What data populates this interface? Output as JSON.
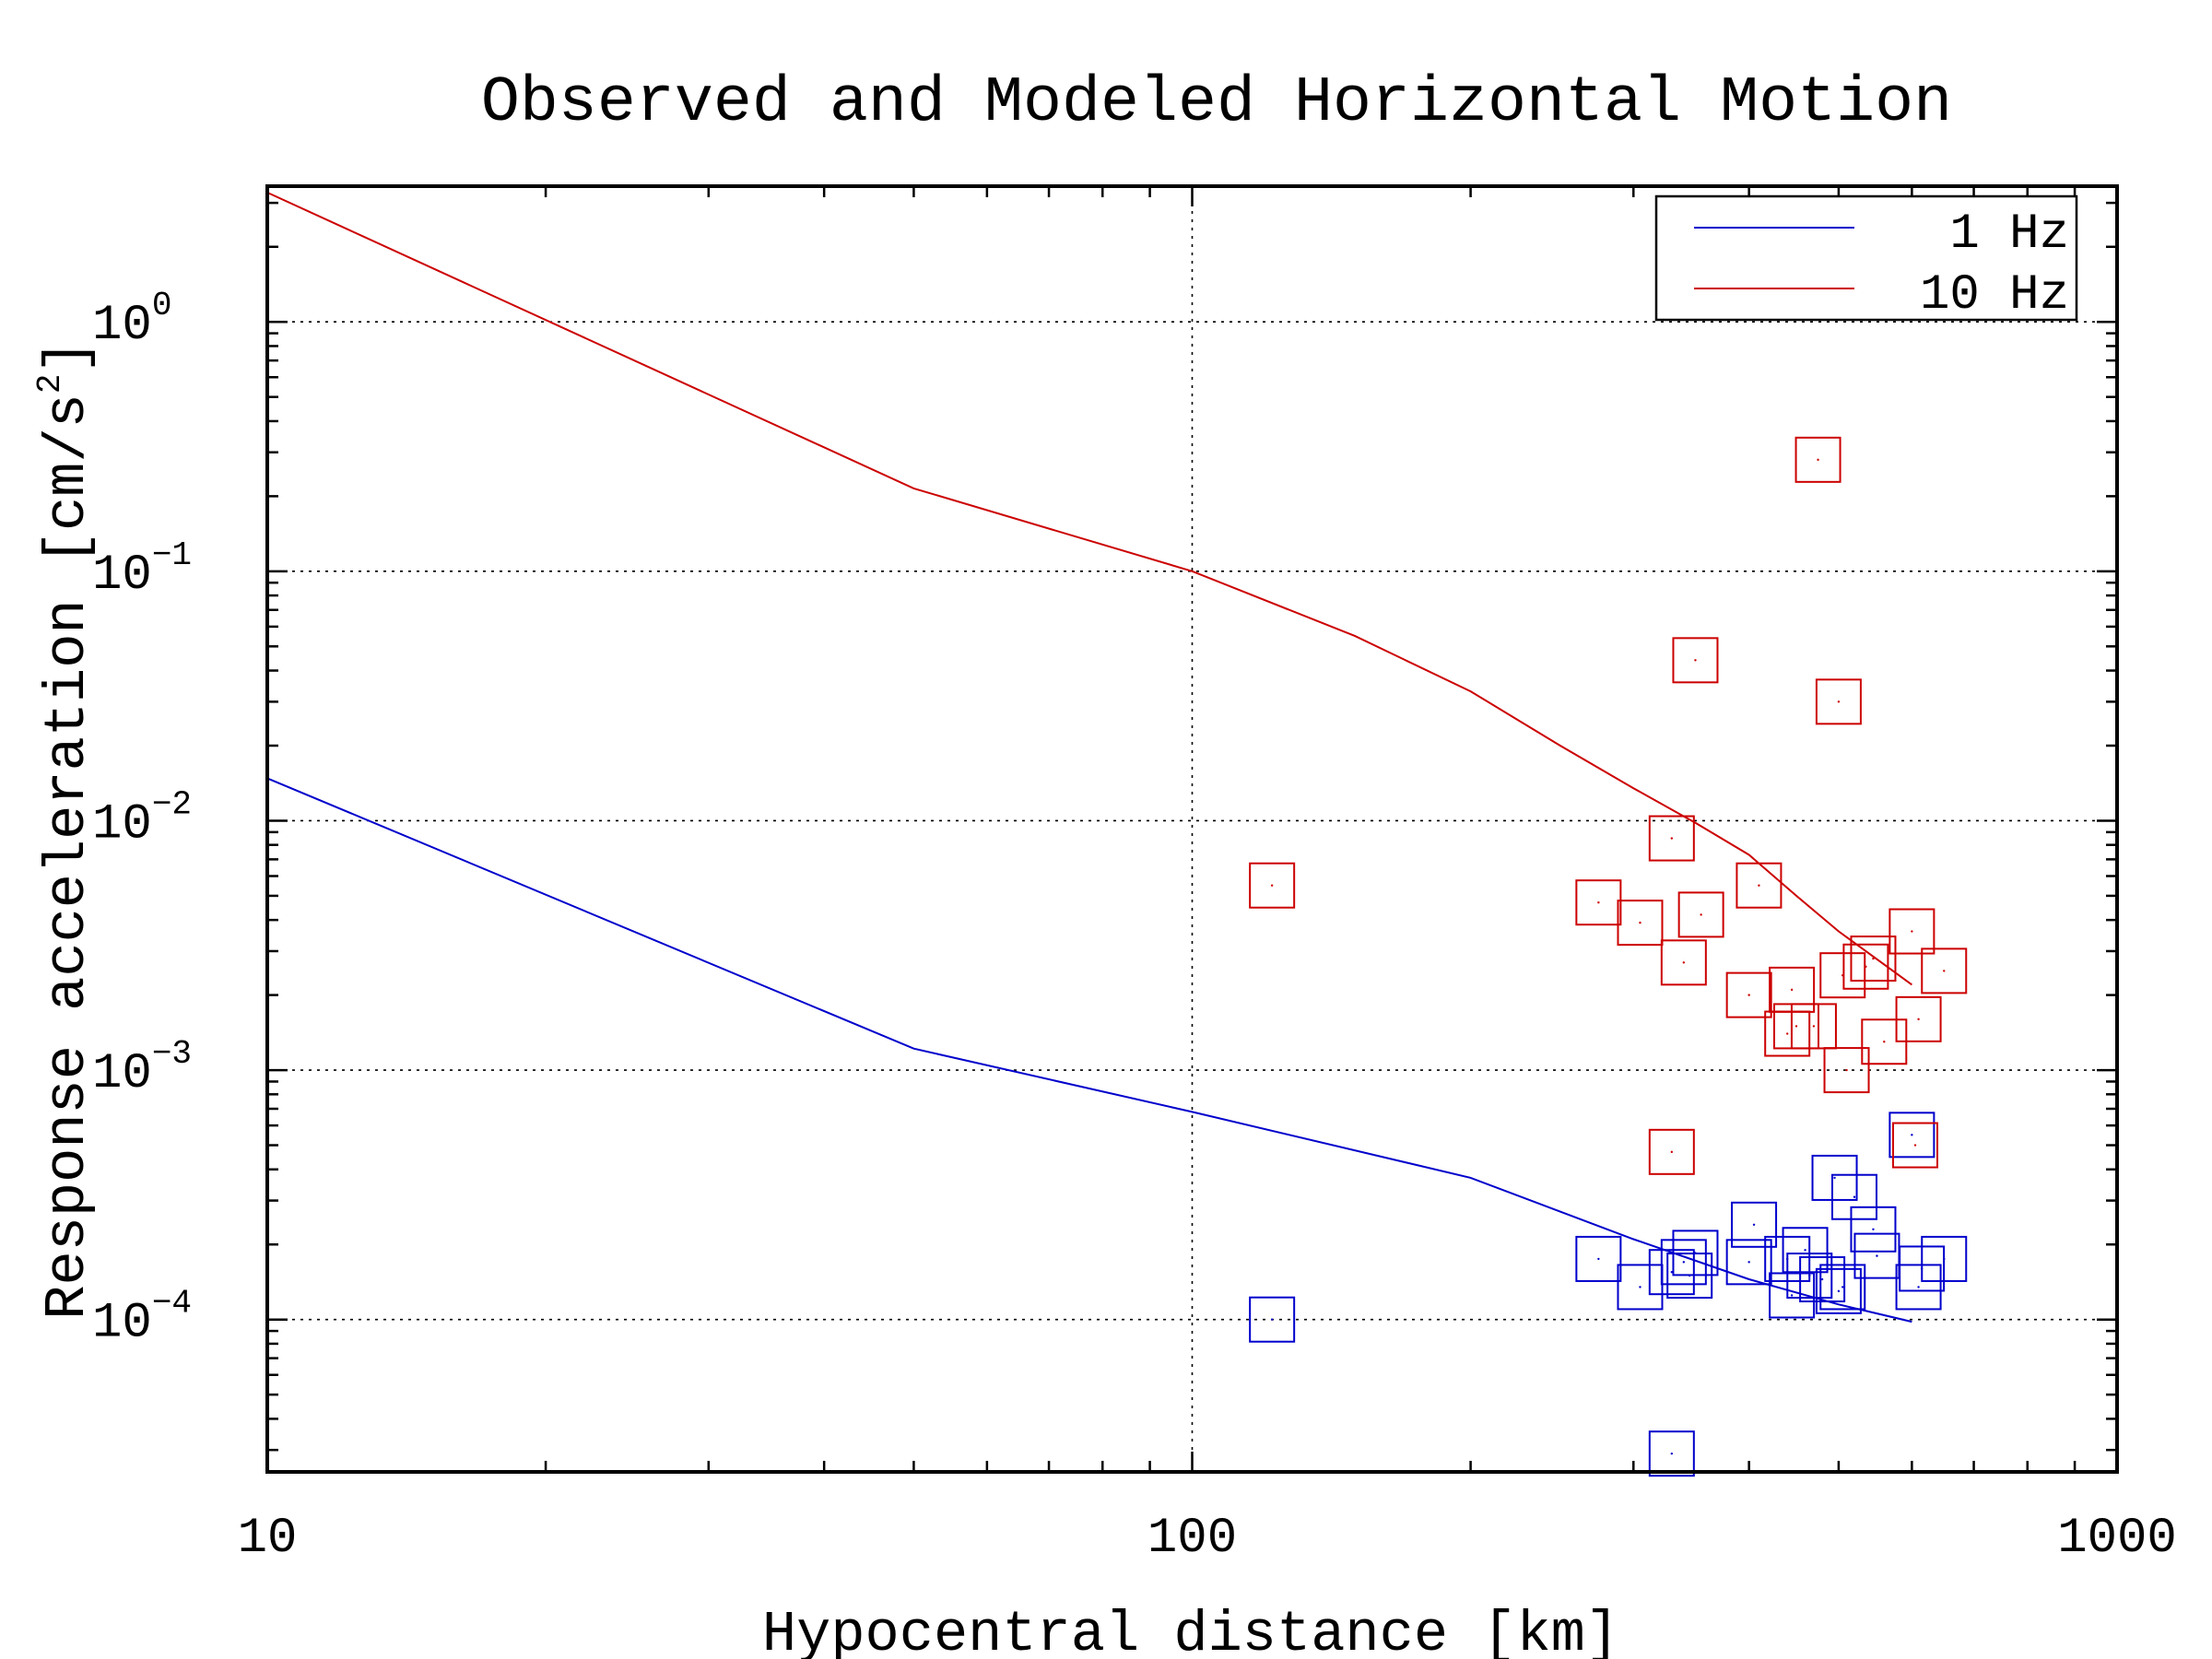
{
  "chart_data": {
    "type": "scatter",
    "title": "Observed and Modeled Horizontal Motion",
    "xlabel": "Hypocentral distance [km]",
    "ylabel_prefix": "Response acceleration [cm/s",
    "ylabel_exp": "2",
    "ylabel_suffix": "]",
    "x_scale": "log",
    "y_scale": "log",
    "xlim": [
      10,
      1000
    ],
    "ylim": [
      2.45e-05,
      3.5
    ],
    "grid": true,
    "legend_position": "top-right",
    "x_ticks": [
      {
        "value": 10,
        "label": "10"
      },
      {
        "value": 100,
        "label": "100"
      },
      {
        "value": 1000,
        "label": "1000"
      }
    ],
    "y_ticks": [
      {
        "value": 1,
        "base": "10",
        "exp": "0"
      },
      {
        "value": 0.1,
        "base": "10",
        "exp": "−1"
      },
      {
        "value": 0.01,
        "base": "10",
        "exp": "−2"
      },
      {
        "value": 0.001,
        "base": "10",
        "exp": "−3"
      },
      {
        "value": 0.0001,
        "base": "10",
        "exp": "−4"
      }
    ],
    "series": [
      {
        "name": "1 Hz",
        "color": "#0000cc",
        "model_line": [
          [
            10,
            0.0148
          ],
          [
            50,
            0.00122
          ],
          [
            100,
            0.00068
          ],
          [
            200,
            0.00037
          ],
          [
            300,
            0.00021
          ],
          [
            400,
            0.000145
          ],
          [
            500,
            0.000115
          ],
          [
            600,
            9.8e-05
          ]
        ],
        "observed": [
          [
            122,
            0.0001
          ],
          [
            330,
            2.9e-05
          ],
          [
            275,
            0.000175
          ],
          [
            305,
            0.000135
          ],
          [
            330,
            0.000155
          ],
          [
            340,
            0.00017
          ],
          [
            345,
            0.00015
          ],
          [
            350,
            0.000185
          ],
          [
            400,
            0.00017
          ],
          [
            405,
            0.00024
          ],
          [
            440,
            0.000175
          ],
          [
            445,
            0.000125
          ],
          [
            460,
            0.00019
          ],
          [
            465,
            0.00015
          ],
          [
            480,
            0.000145
          ],
          [
            495,
            0.00037
          ],
          [
            500,
            0.00013
          ],
          [
            505,
            0.000135
          ],
          [
            520,
            0.00031
          ],
          [
            545,
            0.00023
          ],
          [
            550,
            0.00018
          ],
          [
            600,
            0.00055
          ],
          [
            610,
            0.000135
          ],
          [
            615,
            0.00016
          ],
          [
            650,
            0.000175
          ]
        ]
      },
      {
        "name": "10 Hz",
        "color": "#cc0000",
        "model_line": [
          [
            10,
            3.3
          ],
          [
            50,
            0.215
          ],
          [
            100,
            0.1
          ],
          [
            150,
            0.055
          ],
          [
            200,
            0.033
          ],
          [
            250,
            0.02
          ],
          [
            300,
            0.0135
          ],
          [
            350,
            0.0098
          ],
          [
            400,
            0.0073
          ],
          [
            450,
            0.005
          ],
          [
            500,
            0.0036
          ],
          [
            600,
            0.0022
          ]
        ],
        "observed": [
          [
            122,
            0.0055
          ],
          [
            275,
            0.0047
          ],
          [
            305,
            0.0039
          ],
          [
            330,
            0.0085
          ],
          [
            330,
            0.00047
          ],
          [
            340,
            0.0027
          ],
          [
            350,
            0.044
          ],
          [
            355,
            0.0042
          ],
          [
            400,
            0.002
          ],
          [
            410,
            0.0055
          ],
          [
            440,
            0.0014
          ],
          [
            445,
            0.0021
          ],
          [
            450,
            0.0015
          ],
          [
            470,
            0.0015
          ],
          [
            475,
            0.28
          ],
          [
            500,
            0.03
          ],
          [
            505,
            0.0024
          ],
          [
            510,
            0.001
          ],
          [
            535,
            0.0026
          ],
          [
            545,
            0.0028
          ],
          [
            560,
            0.0013
          ],
          [
            600,
            0.0036
          ],
          [
            605,
            0.0005
          ],
          [
            610,
            0.0016
          ],
          [
            650,
            0.0025
          ]
        ]
      }
    ]
  }
}
